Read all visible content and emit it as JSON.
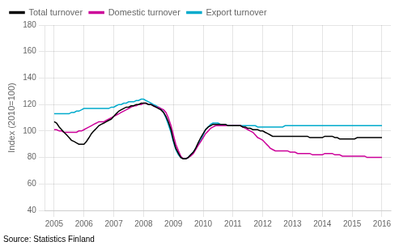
{
  "chart_data": {
    "type": "line",
    "y_label": "Index (2010=100)",
    "source": "Source: Statistics Finland",
    "xlim": [
      2004.7,
      2016.3
    ],
    "xticks": [
      2005,
      2006,
      2007,
      2008,
      2009,
      2010,
      2011,
      2012,
      2013,
      2014,
      2015,
      2016
    ],
    "ylim": [
      40,
      180
    ],
    "yticks": [
      40,
      60,
      80,
      100,
      120,
      140,
      160,
      180
    ],
    "grid": true,
    "legend": "upper left",
    "x": [
      2005.0,
      2005.08,
      2005.17,
      2005.25,
      2005.33,
      2005.42,
      2005.5,
      2005.58,
      2005.67,
      2005.75,
      2005.83,
      2005.92,
      2006.0,
      2006.08,
      2006.17,
      2006.25,
      2006.33,
      2006.42,
      2006.5,
      2006.58,
      2006.67,
      2006.75,
      2006.83,
      2006.92,
      2007.0,
      2007.08,
      2007.17,
      2007.25,
      2007.33,
      2007.42,
      2007.5,
      2007.58,
      2007.67,
      2007.75,
      2007.83,
      2007.92,
      2008.0,
      2008.08,
      2008.17,
      2008.25,
      2008.33,
      2008.42,
      2008.5,
      2008.58,
      2008.67,
      2008.75,
      2008.83,
      2008.92,
      2009.0,
      2009.08,
      2009.17,
      2009.25,
      2009.33,
      2009.42,
      2009.5,
      2009.58,
      2009.67,
      2009.75,
      2009.83,
      2009.92,
      2010.0,
      2010.08,
      2010.17,
      2010.25,
      2010.33,
      2010.42,
      2010.5,
      2010.58,
      2010.67,
      2010.75,
      2010.83,
      2010.92,
      2011.0,
      2011.08,
      2011.17,
      2011.25,
      2011.33,
      2011.42,
      2011.5,
      2011.58,
      2011.67,
      2011.75,
      2011.83,
      2011.92,
      2012.0,
      2012.08,
      2012.17,
      2012.25,
      2012.33,
      2012.42,
      2012.5,
      2012.58,
      2012.67,
      2012.75,
      2012.83,
      2012.92,
      2013.0,
      2013.08,
      2013.17,
      2013.25,
      2013.33,
      2013.42,
      2013.5,
      2013.58,
      2013.67,
      2013.75,
      2013.83,
      2013.92,
      2014.0,
      2014.08,
      2014.17,
      2014.25,
      2014.33,
      2014.42,
      2014.5,
      2014.58,
      2014.67,
      2014.75,
      2014.83,
      2014.92,
      2015.0,
      2015.08,
      2015.17,
      2015.25,
      2015.33,
      2015.42,
      2015.5,
      2015.58,
      2015.67,
      2015.75,
      2015.83,
      2015.92,
      2016.0
    ],
    "series": [
      {
        "name": "Total turnover",
        "color": "#000000",
        "values": [
          107,
          106,
          103,
          101,
          99,
          97,
          95,
          93,
          92,
          91,
          90,
          90,
          90,
          92,
          95,
          98,
          100,
          102,
          104,
          105,
          106,
          107,
          108,
          109,
          111,
          113,
          115,
          116,
          117,
          118,
          118,
          119,
          119,
          120,
          120,
          121,
          121,
          121,
          120,
          120,
          119,
          118,
          117,
          116,
          114,
          111,
          107,
          101,
          93,
          87,
          83,
          80,
          79,
          79,
          80,
          82,
          84,
          87,
          91,
          95,
          98,
          101,
          103,
          104,
          105,
          105,
          105,
          105,
          105,
          105,
          104,
          104,
          104,
          104,
          104,
          104,
          103,
          103,
          102,
          102,
          101,
          101,
          101,
          100,
          100,
          99,
          98,
          97,
          96,
          96,
          96,
          96,
          96,
          96,
          96,
          96,
          96,
          96,
          96,
          96,
          96,
          96,
          96,
          95,
          95,
          95,
          95,
          95,
          95,
          96,
          96,
          96,
          96,
          95,
          95,
          94,
          94,
          94,
          94,
          94,
          94,
          94,
          95,
          95,
          95,
          95,
          95,
          95,
          95,
          95,
          95,
          95,
          95
        ]
      },
      {
        "name": "Domestic turnover",
        "color": "#cc0099",
        "values": [
          101,
          101,
          100,
          100,
          99,
          99,
          99,
          99,
          99,
          99,
          100,
          100,
          101,
          102,
          103,
          104,
          105,
          106,
          107,
          107,
          107,
          108,
          109,
          110,
          111,
          112,
          113,
          114,
          115,
          116,
          117,
          118,
          119,
          119,
          120,
          120,
          121,
          121,
          120,
          120,
          119,
          118,
          118,
          117,
          116,
          114,
          110,
          104,
          97,
          90,
          85,
          81,
          79,
          79,
          80,
          81,
          83,
          86,
          89,
          92,
          95,
          98,
          100,
          102,
          103,
          104,
          104,
          104,
          104,
          104,
          104,
          104,
          104,
          104,
          104,
          104,
          103,
          102,
          101,
          100,
          99,
          97,
          95,
          94,
          93,
          91,
          89,
          87,
          86,
          85,
          85,
          85,
          85,
          85,
          85,
          84,
          84,
          84,
          83,
          83,
          83,
          83,
          83,
          83,
          82,
          82,
          82,
          82,
          82,
          83,
          83,
          83,
          83,
          82,
          82,
          82,
          81,
          81,
          81,
          81,
          81,
          81,
          81,
          81,
          81,
          81,
          80,
          80,
          80,
          80,
          80,
          80,
          80
        ]
      },
      {
        "name": "Export turnover",
        "color": "#00aacc",
        "values": [
          113,
          113,
          113,
          113,
          113,
          113,
          113,
          114,
          114,
          115,
          115,
          116,
          117,
          117,
          117,
          117,
          117,
          117,
          117,
          117,
          117,
          117,
          117,
          118,
          118,
          119,
          120,
          120,
          121,
          121,
          122,
          122,
          122,
          123,
          123,
          124,
          124,
          123,
          122,
          121,
          120,
          119,
          118,
          117,
          114,
          110,
          105,
          99,
          92,
          86,
          82,
          80,
          79,
          79,
          80,
          82,
          84,
          87,
          90,
          93,
          97,
          101,
          103,
          105,
          106,
          106,
          106,
          105,
          105,
          105,
          104,
          104,
          104,
          104,
          104,
          104,
          104,
          104,
          104,
          104,
          104,
          104,
          103,
          103,
          103,
          103,
          103,
          103,
          103,
          103,
          103,
          103,
          103,
          104,
          104,
          104,
          104,
          104,
          104,
          104,
          104,
          104,
          104,
          104,
          104,
          104,
          104,
          104,
          104,
          104,
          104,
          104,
          104,
          104,
          104,
          104,
          104,
          104,
          104,
          104,
          104,
          104,
          104,
          104,
          104,
          104,
          104,
          104,
          104,
          104,
          104,
          104,
          104
        ]
      }
    ]
  }
}
